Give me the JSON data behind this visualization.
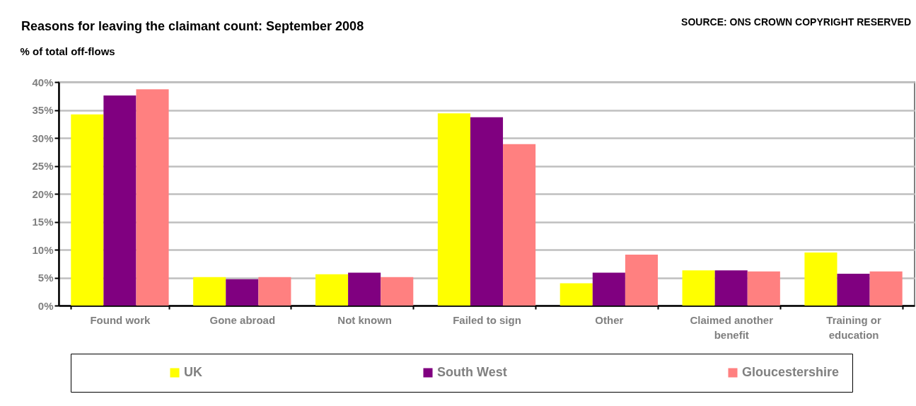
{
  "chart_data": {
    "type": "bar",
    "title": "Reasons for leaving the claimant count: September 2008",
    "ylabel": "% of total off-flows",
    "annotations": [
      "SOURCE: ONS CROWN COPYRIGHT RESERVED"
    ],
    "categories": [
      "Found work",
      "Gone abroad",
      "Not known",
      "Failed to sign",
      "Other",
      "Claimed another benefit",
      "Training or education"
    ],
    "series": [
      {
        "name": "UK",
        "color": "#ffff00",
        "values": [
          34.2,
          5.1,
          5.6,
          34.4,
          4.0,
          6.3,
          9.5
        ]
      },
      {
        "name": "South West",
        "color": "#800080",
        "values": [
          37.6,
          4.7,
          5.9,
          33.7,
          5.9,
          6.3,
          5.7
        ]
      },
      {
        "name": "Gloucestershire",
        "color": "#ff8080",
        "values": [
          38.7,
          5.1,
          5.1,
          28.9,
          9.1,
          6.1,
          6.1
        ]
      }
    ],
    "ylim": [
      0,
      40
    ],
    "yticks": [
      {
        "value": 0,
        "label": "0%"
      },
      {
        "value": 5,
        "label": "5%"
      },
      {
        "value": 10,
        "label": "10%"
      },
      {
        "value": 15,
        "label": "15%"
      },
      {
        "value": 20,
        "label": "20%"
      },
      {
        "value": 25,
        "label": "25%"
      },
      {
        "value": 30,
        "label": "30%"
      },
      {
        "value": 35,
        "label": "35%"
      },
      {
        "value": 40,
        "label": "40%"
      }
    ],
    "grid": "y",
    "legend": "bottom"
  }
}
